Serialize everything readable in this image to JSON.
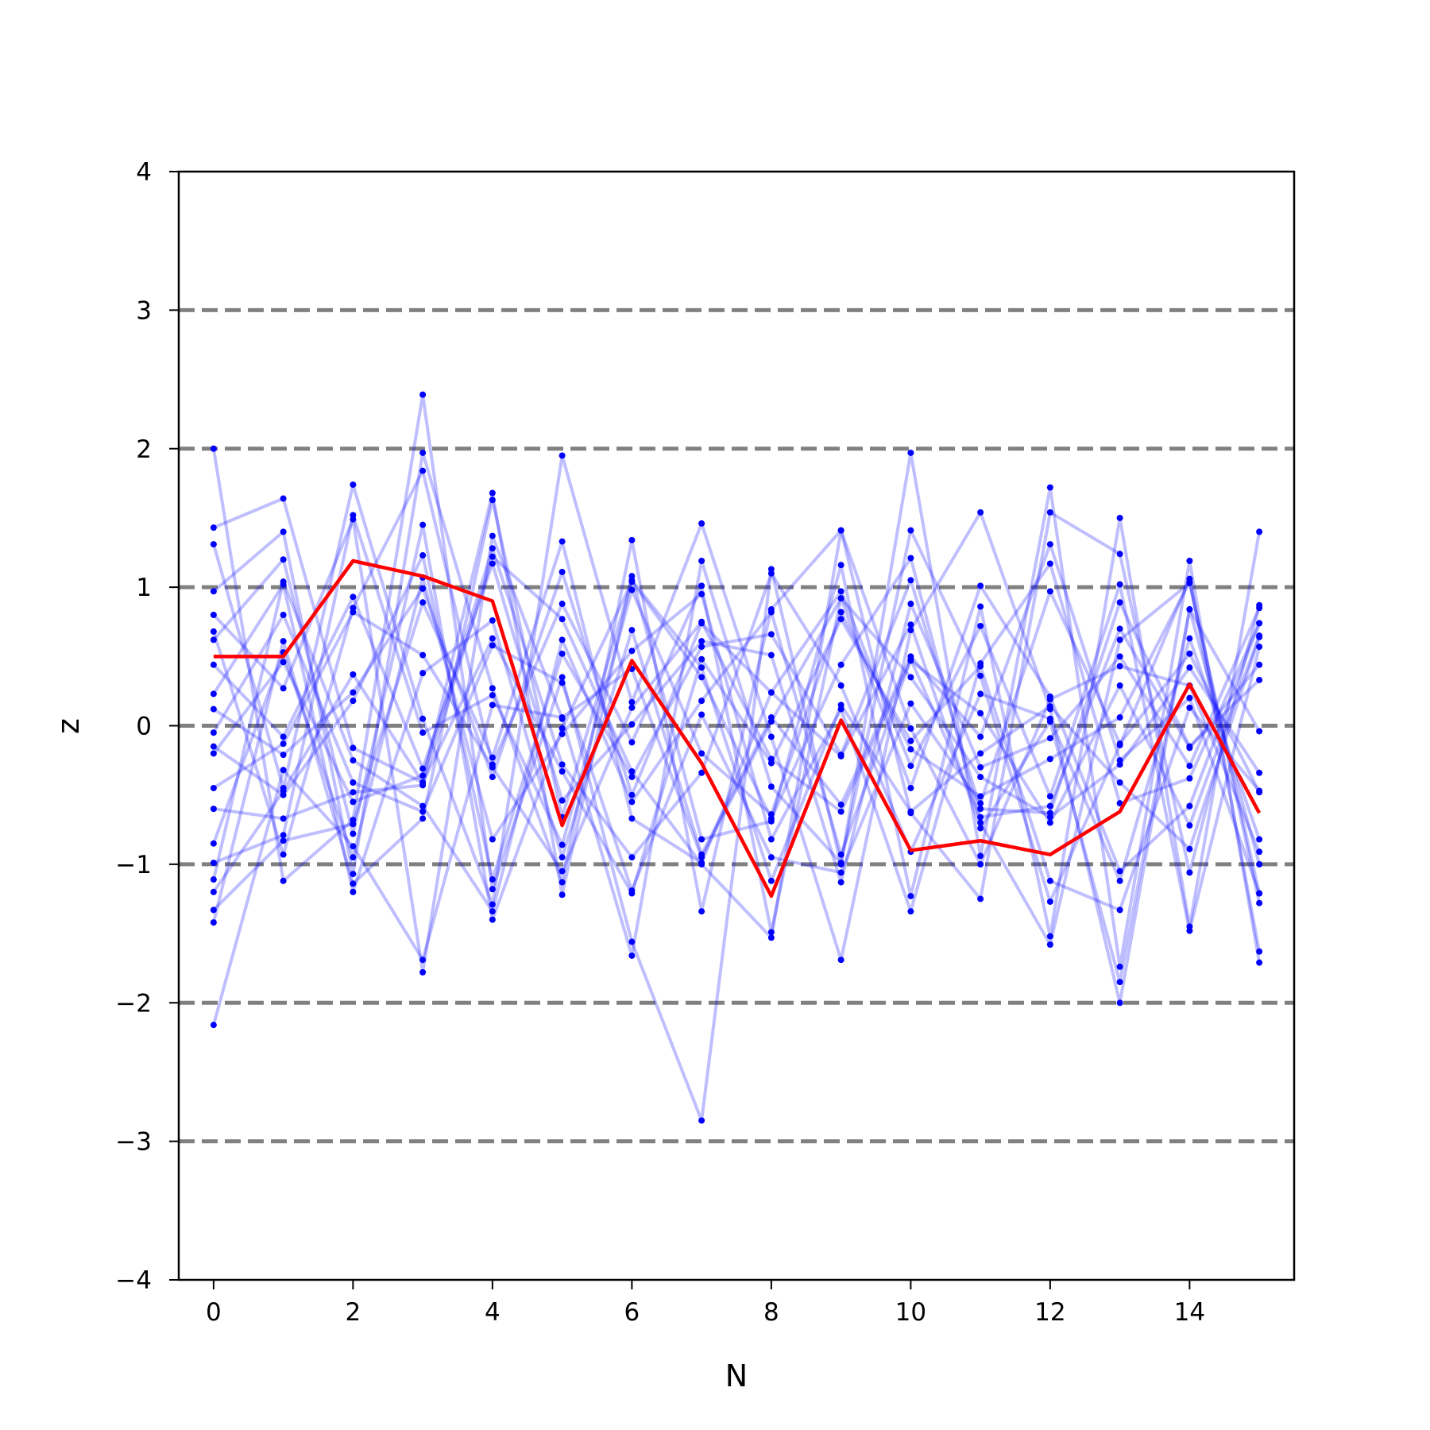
{
  "chart_data": {
    "type": "line",
    "title": "",
    "xlabel": "N",
    "ylabel": "z",
    "xlim": [
      -0.5,
      15.5
    ],
    "ylim": [
      -4,
      4
    ],
    "xticks": [
      0,
      2,
      4,
      6,
      8,
      10,
      12,
      14
    ],
    "xtick_labels": [
      "0",
      "2",
      "4",
      "6",
      "8",
      "10",
      "12",
      "14"
    ],
    "yticks": [
      -4,
      -3,
      -2,
      -1,
      0,
      1,
      2,
      3,
      4
    ],
    "ytick_labels": [
      "−4",
      "−3",
      "−2",
      "−1",
      "0",
      "1",
      "2",
      "3",
      "4"
    ],
    "reference_lines": [
      -3,
      -2,
      -1,
      0,
      1,
      2,
      3
    ],
    "reference_line_style": "dashed",
    "grid": false,
    "legend": "none",
    "colors": {
      "background_series": "#0000ff",
      "highlight_series": "#ff0000",
      "reference_line": "#808080",
      "axes": "#000000"
    },
    "x": [
      0,
      1,
      2,
      3,
      4,
      5,
      6,
      7,
      8,
      9,
      10,
      11,
      12,
      13,
      14,
      15
    ],
    "highlight_series": {
      "values": [
        0.5,
        0.5,
        1.19,
        1.08,
        0.9,
        -0.72,
        0.47,
        -0.27,
        -1.23,
        0.04,
        -0.9,
        -0.83,
        -0.93,
        -0.62,
        0.3,
        -0.63
      ]
    },
    "background_series": [
      [
        2.0,
        -1.12,
        -0.68,
        2.39,
        -1.18,
        0.35,
        -1.56,
        -2.85,
        1.13,
        -1.0,
        1.97,
        -0.94,
        1.72,
        -1.74,
        1.19,
        -1.71
      ],
      [
        1.43,
        1.64,
        -0.16,
        -0.41,
        1.68,
        -1.22,
        1.08,
        -0.82,
        -0.69,
        1.16,
        -1.23,
        0.86,
        -1.52,
        1.5,
        -1.45,
        1.4
      ],
      [
        1.31,
        -0.45,
        1.74,
        0.05,
        -1.29,
        1.95,
        0.17,
        1.46,
        -0.08,
        -1.69,
        0.69,
        1.54,
        0.12,
        -2.0,
        0.84,
        -0.04
      ],
      [
        0.97,
        1.4,
        -1.07,
        1.97,
        0.27,
        -1.13,
        1.34,
        -1.34,
        0.84,
        1.41,
        -0.63,
        -1.25,
        1.54,
        1.24,
        -1.06,
        0.87
      ],
      [
        0.8,
        0.27,
        1.49,
        -1.78,
        1.37,
        0.05,
        -1.66,
        1.19,
        -0.44,
        -0.99,
        1.41,
        0.36,
        -1.27,
        -0.14,
        1.06,
        -1.63
      ],
      [
        0.68,
        -0.93,
        0.85,
        1.84,
        -0.28,
        0.88,
        -0.12,
        1.01,
        -1.49,
        0.92,
        -0.45,
        1.01,
        0.21,
        -1.05,
        -0.58,
        0.74
      ],
      [
        0.62,
        1.2,
        -0.78,
        1.45,
        -1.4,
        -0.02,
        1.04,
        0.35,
        -0.67,
        0.44,
        1.21,
        -0.7,
        -1.58,
        0.62,
        1.03,
        -1.21
      ],
      [
        0.44,
        -0.08,
        0.93,
        -0.31,
        1.17,
        -0.54,
        0.01,
        0.61,
        0.51,
        -1.13,
        0.88,
        -0.3,
        -0.09,
        0.5,
        -0.29,
        0.85
      ],
      [
        0.23,
        1.02,
        -1.2,
        0.38,
        0.76,
        -0.95,
        0.69,
        -0.93,
        0.06,
        -0.57,
        0.5,
        -0.08,
        1.31,
        -0.25,
        0.2,
        -1.21
      ],
      [
        0.12,
        -0.21,
        0.24,
        0.99,
        -0.37,
        1.11,
        -0.5,
        0.74,
        0.24,
        0.97,
        -0.29,
        0.72,
        -0.51,
        1.02,
        -1.48,
        0.57
      ],
      [
        -0.05,
        0.8,
        -0.41,
        -0.62,
        0.58,
        0.31,
        -1.19,
        0.08,
        -0.95,
        -1.06,
        0.16,
        -0.56,
        0.97,
        -0.13,
        0.52,
        -0.48
      ],
      [
        -0.15,
        -0.5,
        0.18,
        1.23,
        -1.11,
        0.52,
        -0.37,
        0.57,
        0.66,
        -0.21,
        1.05,
        -0.6,
        -0.63,
        0.89,
        -0.15,
        0.33
      ],
      [
        -0.2,
        0.46,
        -0.55,
        -0.36,
        1.28,
        -0.28,
        -0.95,
        -0.34,
        1.1,
        0.29,
        -0.91,
        0.23,
        0.05,
        -1.12,
        0.63,
        -0.82
      ],
      [
        -0.45,
        -0.13,
        0.82,
        0.51,
        -0.3,
        -1.05,
        0.13,
        0.75,
        -0.24,
        -0.62,
        0.47,
        0.09,
        -0.7,
        0.29,
        -0.72,
        0.65
      ],
      [
        -0.6,
        -0.67,
        -0.48,
        -0.43,
        1.22,
        0.77,
        -0.33,
        -1.0,
        -1.53,
        1.41,
        -0.02,
        -1.0,
        0.19,
        0.43,
        0.29,
        -0.91
      ],
      [
        -0.85,
        0.53,
        -0.95,
        1.07,
        -0.82,
        -0.06,
        0.54,
        0.95,
        -0.82,
        0.12,
        -1.34,
        0.45,
        1.17,
        -0.56,
        -0.38,
        0.74
      ],
      [
        -0.99,
        -0.79,
        1.52,
        -0.05,
        0.22,
        -0.86,
        0.98,
        -0.2,
        -0.64,
        0.82,
        -0.17,
        -0.51,
        -0.24,
        0.06,
        1.04,
        -1.28
      ],
      [
        -1.11,
        1.04,
        -0.25,
        -0.58,
        -1.34,
        0.62,
        -0.55,
        0.18,
        0.82,
        -0.93,
        0.48,
        -0.66,
        -0.58,
        0.7,
        -0.16,
        0.44
      ],
      [
        -1.2,
        -0.47,
        0.37,
        -0.41,
        0.63,
        -0.33,
        -1.21,
        0.48,
        -0.27,
        0.77,
        -0.11,
        0.43,
        -1.12,
        -1.33,
        0.13,
        -0.47
      ],
      [
        -1.33,
        -0.83,
        -0.71,
        0.89,
        -0.23,
        1.33,
        -0.67,
        -0.99,
        0.24,
        -0.22,
        0.73,
        -0.74,
        0.03,
        -1.85,
        0.84,
        -1.0
      ],
      [
        -1.42,
        0.61,
        -1.14,
        -0.67,
        1.63,
        -0.66,
        1.05,
        0.42,
        -1.12,
        0.15,
        -0.62,
        -0.2,
        0.14,
        -0.41,
        -0.89,
        0.64
      ],
      [
        -2.16,
        -0.32,
        -0.87,
        -1.69,
        0.15,
        0.06,
        0.41,
        -0.95,
        0.03,
        0.92,
        0.35,
        -0.37,
        -0.66,
        -0.28,
        0.42,
        -0.34
      ]
    ]
  }
}
